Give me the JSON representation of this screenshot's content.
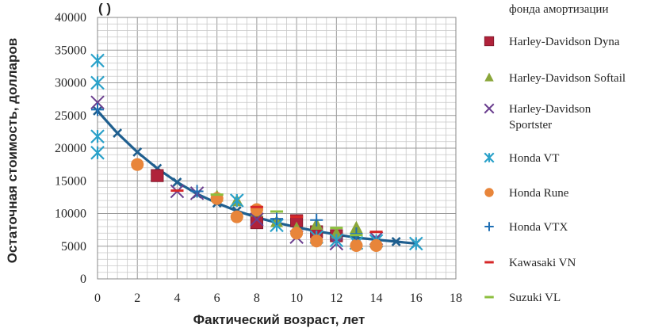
{
  "chart_data": {
    "type": "scatter",
    "title": "(                    )",
    "xlabel": "Фактический возраст, лет",
    "ylabel": "Остаточная стоимость, долларов",
    "xlim": [
      0,
      18
    ],
    "ylim": [
      0,
      40000
    ],
    "x_ticks": [
      "0",
      "2",
      "4",
      "6",
      "8",
      "10",
      "12",
      "14",
      "16",
      "18"
    ],
    "y_ticks": [
      "0",
      "5000",
      "10000",
      "15000",
      "20000",
      "25000",
      "30000",
      "35000",
      "40000"
    ],
    "grid": true,
    "legend_position": "right",
    "legend_partial_top": "фонда амортизации",
    "curve": {
      "color": "#1f5f8f",
      "points": [
        {
          "x": 0,
          "y": 25700
        },
        {
          "x": 1,
          "y": 22300
        },
        {
          "x": 2,
          "y": 19400
        },
        {
          "x": 3,
          "y": 16900
        },
        {
          "x": 4,
          "y": 14800
        },
        {
          "x": 5,
          "y": 13000
        },
        {
          "x": 6,
          "y": 11600
        },
        {
          "x": 7,
          "y": 10400
        },
        {
          "x": 8,
          "y": 9400
        },
        {
          "x": 9,
          "y": 8600
        },
        {
          "x": 10,
          "y": 7900
        },
        {
          "x": 11,
          "y": 7300
        },
        {
          "x": 12,
          "y": 6800
        },
        {
          "x": 13,
          "y": 6300
        },
        {
          "x": 14,
          "y": 6000
        },
        {
          "x": 15,
          "y": 5700
        },
        {
          "x": 16,
          "y": 5400
        }
      ]
    },
    "series": [
      {
        "name": "Harley-Davidson Dyna",
        "marker": "square",
        "color": "#b0223a",
        "points": [
          {
            "x": 3,
            "y": 15800
          },
          {
            "x": 8,
            "y": 8600
          },
          {
            "x": 10,
            "y": 8900
          },
          {
            "x": 11,
            "y": 7200
          },
          {
            "x": 12,
            "y": 6600
          }
        ]
      },
      {
        "name": "Harley-Davidson Softail",
        "marker": "triangle",
        "color": "#8aa63a",
        "points": [
          {
            "x": 6,
            "y": 12600
          },
          {
            "x": 7,
            "y": 11900
          },
          {
            "x": 8,
            "y": 10300
          },
          {
            "x": 9,
            "y": 8700
          },
          {
            "x": 10,
            "y": 7700
          },
          {
            "x": 11,
            "y": 8300
          },
          {
            "x": 12,
            "y": 6900
          },
          {
            "x": 13,
            "y": 7800
          }
        ]
      },
      {
        "name": "Harley-Davidson Sportster",
        "marker": "x",
        "color": "#6b3f8f",
        "points": [
          {
            "x": 0,
            "y": 27000
          },
          {
            "x": 4,
            "y": 13400
          },
          {
            "x": 5,
            "y": 13100
          },
          {
            "x": 8,
            "y": 9100
          },
          {
            "x": 10,
            "y": 6400
          },
          {
            "x": 12,
            "y": 5400
          },
          {
            "x": 14,
            "y": 6200
          }
        ]
      },
      {
        "name": "Honda  VT",
        "marker": "asterisk",
        "color": "#2aa1c9",
        "points": [
          {
            "x": 0,
            "y": 33400
          },
          {
            "x": 0,
            "y": 30000
          },
          {
            "x": 0,
            "y": 21800
          },
          {
            "x": 0,
            "y": 19300
          },
          {
            "x": 7,
            "y": 12000
          },
          {
            "x": 9,
            "y": 8200
          },
          {
            "x": 11,
            "y": 6400
          },
          {
            "x": 12,
            "y": 5900
          },
          {
            "x": 13,
            "y": 5500
          },
          {
            "x": 14,
            "y": 5800
          },
          {
            "x": 16,
            "y": 5400
          }
        ]
      },
      {
        "name": "Honda Rune",
        "marker": "circle",
        "color": "#e8853a",
        "points": [
          {
            "x": 2,
            "y": 17500
          },
          {
            "x": 6,
            "y": 12300
          },
          {
            "x": 7,
            "y": 9500
          },
          {
            "x": 8,
            "y": 10600
          },
          {
            "x": 10,
            "y": 7000
          },
          {
            "x": 11,
            "y": 5800
          },
          {
            "x": 13,
            "y": 5100
          },
          {
            "x": 14,
            "y": 5100
          }
        ]
      },
      {
        "name": "Honda VTX",
        "marker": "plus",
        "color": "#1f6fb4",
        "points": [
          {
            "x": 0,
            "y": 25900
          },
          {
            "x": 5,
            "y": 13400
          },
          {
            "x": 9,
            "y": 9200
          },
          {
            "x": 11,
            "y": 9000
          },
          {
            "x": 13,
            "y": 6900
          }
        ]
      },
      {
        "name": "Kawasaki VN",
        "marker": "dash",
        "color": "#d62728",
        "points": [
          {
            "x": 4,
            "y": 13500
          },
          {
            "x": 8,
            "y": 11000
          },
          {
            "x": 10,
            "y": 9500
          },
          {
            "x": 14,
            "y": 7200
          }
        ]
      },
      {
        "name": "Suzuki VL",
        "marker": "dash",
        "color": "#8dbf3f",
        "points": [
          {
            "x": 6,
            "y": 12900
          },
          {
            "x": 9,
            "y": 10300
          },
          {
            "x": 12,
            "y": 7800
          },
          {
            "x": 13,
            "y": 6700
          }
        ]
      }
    ]
  }
}
